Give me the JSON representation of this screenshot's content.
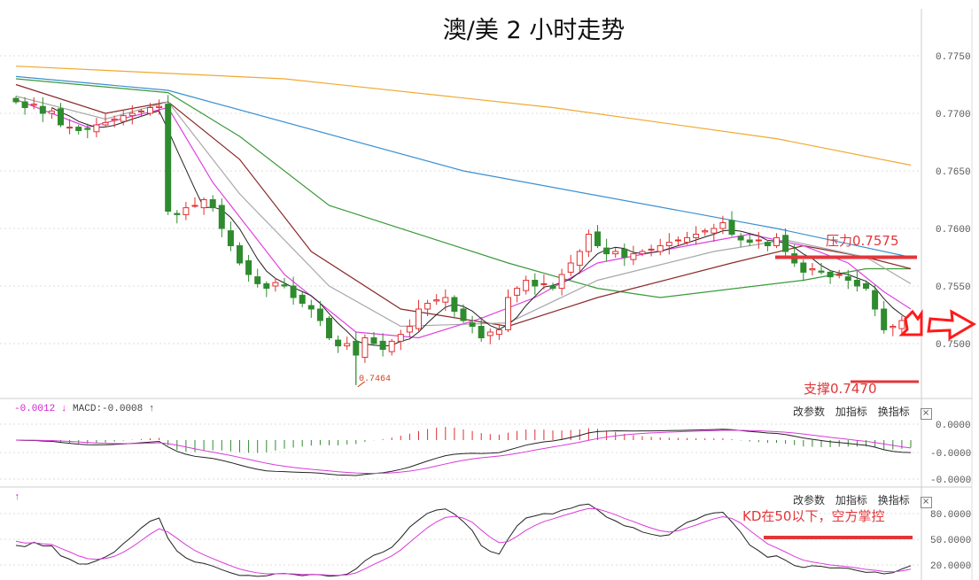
{
  "title": "澳/美 2 小时走势",
  "colors": {
    "up": "#e03030",
    "down": "#2e8b2e",
    "annotation": "#e2363a",
    "ma5": "#222222",
    "dif": "#222222",
    "dea": "#d83ad8"
  },
  "price_axis": {
    "labels": [
      "0.7750",
      "0.7700",
      "0.7650",
      "0.7600",
      "0.7550",
      "0.7500"
    ],
    "values": [
      0.775,
      0.77,
      0.765,
      0.76,
      0.755,
      0.75
    ]
  },
  "macd_axis": {
    "labels": [
      "0.0000",
      "-0.0000",
      "-0.0000"
    ]
  },
  "kd_axis": {
    "labels": [
      "80.0000",
      "50.0000",
      "20.0000"
    ],
    "values": [
      80,
      50,
      20
    ]
  },
  "macd_header": {
    "dea_value": "-0.0012",
    "dea_arrow": "↓",
    "macd_text": "MACD:-0.0008",
    "macd_arrow": "↑"
  },
  "kd_header": {
    "arrow": "↑"
  },
  "panel_buttons": {
    "edit": "改参数",
    "add": "加指标",
    "swap": "换指标",
    "close": "×"
  },
  "annotations": {
    "resistance": "压力0.7575",
    "resistance_value": 0.7575,
    "support": "支撑0.7470",
    "support_value": 0.747,
    "low_label": "0.7464",
    "low_value": 0.7464,
    "kd_note": "KD在50以下，空方掌控",
    "kd_level": 50
  },
  "chart_data": {
    "type": "candlestick",
    "title": "澳/美 2 小时走势",
    "ylim": [
      0.7455,
      0.7775
    ],
    "closes": [
      0.771,
      0.7705,
      0.7708,
      0.77,
      0.7702,
      0.769,
      0.7688,
      0.7685,
      0.7686,
      0.769,
      0.7692,
      0.7695,
      0.7698,
      0.77,
      0.7702,
      0.7705,
      0.7706,
      0.7615,
      0.7612,
      0.7618,
      0.762,
      0.7625,
      0.7618,
      0.76,
      0.7585,
      0.757,
      0.756,
      0.7552,
      0.7548,
      0.7553,
      0.755,
      0.754,
      0.7535,
      0.753,
      0.752,
      0.7505,
      0.7498,
      0.75,
      0.749,
      0.7505,
      0.75,
      0.7495,
      0.7502,
      0.7508,
      0.7515,
      0.753,
      0.7535,
      0.7538,
      0.754,
      0.7528,
      0.752,
      0.7515,
      0.7505,
      0.751,
      0.7512,
      0.754,
      0.7548,
      0.7555,
      0.755,
      0.7552,
      0.7548,
      0.756,
      0.757,
      0.758,
      0.7595,
      0.7585,
      0.7578,
      0.758,
      0.7575,
      0.7578,
      0.758,
      0.7582,
      0.7585,
      0.7588,
      0.759,
      0.7592,
      0.7595,
      0.7598,
      0.76,
      0.7605,
      0.7595,
      0.759,
      0.7588,
      0.759,
      0.7585,
      0.7592,
      0.758,
      0.757,
      0.7562,
      0.7565,
      0.7562,
      0.7558,
      0.756,
      0.7555,
      0.755,
      0.7548,
      0.753,
      0.7512,
      0.7515,
      0.752,
      0.7522
    ],
    "moving_averages": [
      {
        "name": "MA-long-1",
        "color": "#f0a830",
        "points": [
          [
            0,
            0.7741
          ],
          [
            30,
            0.773
          ],
          [
            60,
            0.7705
          ],
          [
            85,
            0.7678
          ],
          [
            100,
            0.7655
          ]
        ]
      },
      {
        "name": "MA-long-2",
        "color": "#3a8fd0",
        "points": [
          [
            0,
            0.7732
          ],
          [
            17,
            0.772
          ],
          [
            50,
            0.765
          ],
          [
            85,
            0.76
          ],
          [
            100,
            0.7575
          ]
        ]
      },
      {
        "name": "MA-mid-1",
        "color": "#3a9a3a",
        "points": [
          [
            0,
            0.773
          ],
          [
            17,
            0.7718
          ],
          [
            25,
            0.768
          ],
          [
            35,
            0.762
          ],
          [
            55,
            0.757
          ],
          [
            65,
            0.7548
          ],
          [
            72,
            0.754
          ],
          [
            88,
            0.7555
          ],
          [
            95,
            0.7565
          ],
          [
            100,
            0.7565
          ]
        ]
      },
      {
        "name": "MA-mid-2",
        "color": "#8b2a2a",
        "points": [
          [
            0,
            0.7725
          ],
          [
            10,
            0.77
          ],
          [
            17,
            0.771
          ],
          [
            25,
            0.766
          ],
          [
            33,
            0.758
          ],
          [
            43,
            0.753
          ],
          [
            55,
            0.7515
          ],
          [
            65,
            0.754
          ],
          [
            80,
            0.757
          ],
          [
            88,
            0.7585
          ],
          [
            95,
            0.7575
          ],
          [
            100,
            0.7565
          ]
        ]
      },
      {
        "name": "MA-short-1",
        "color": "#a8a8a8",
        "points": [
          [
            0,
            0.7715
          ],
          [
            10,
            0.7695
          ],
          [
            17,
            0.771
          ],
          [
            25,
            0.763
          ],
          [
            35,
            0.755
          ],
          [
            43,
            0.7515
          ],
          [
            55,
            0.7518
          ],
          [
            65,
            0.7555
          ],
          [
            78,
            0.758
          ],
          [
            86,
            0.759
          ],
          [
            95,
            0.7575
          ],
          [
            100,
            0.7552
          ]
        ]
      },
      {
        "name": "MA-short-2",
        "color": "#e040e0",
        "points": [
          [
            0,
            0.7712
          ],
          [
            8,
            0.7688
          ],
          [
            17,
            0.7705
          ],
          [
            22,
            0.764
          ],
          [
            30,
            0.756
          ],
          [
            38,
            0.751
          ],
          [
            45,
            0.7505
          ],
          [
            52,
            0.7522
          ],
          [
            58,
            0.754
          ],
          [
            65,
            0.757
          ],
          [
            75,
            0.7585
          ],
          [
            82,
            0.7595
          ],
          [
            88,
            0.7585
          ],
          [
            93,
            0.757
          ],
          [
            97,
            0.7545
          ],
          [
            100,
            0.753
          ]
        ]
      }
    ]
  }
}
